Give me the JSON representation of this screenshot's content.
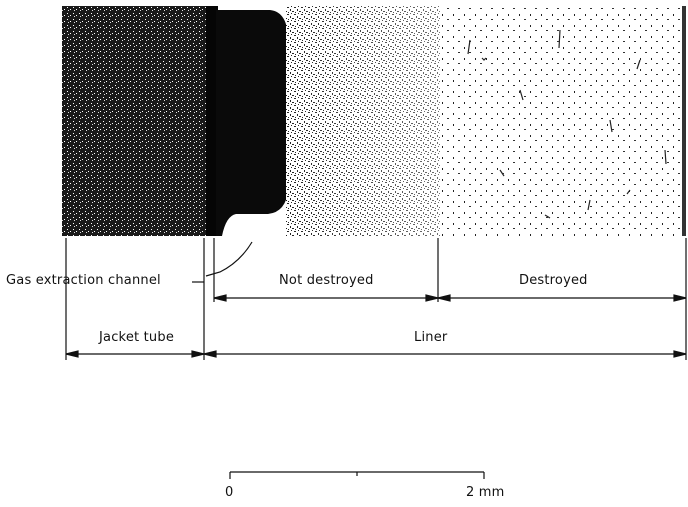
{
  "labels": {
    "gas_extraction_channel": "Gas extraction channel",
    "not_destroyed": "Not destroyed",
    "destroyed": "Destroyed",
    "jacket_tube": "Jacket tube",
    "liner": "Liner"
  },
  "scale_bar": {
    "start": "0",
    "end": "2 mm"
  },
  "colors": {
    "ink": "#111111",
    "paper": "#ffffff"
  }
}
